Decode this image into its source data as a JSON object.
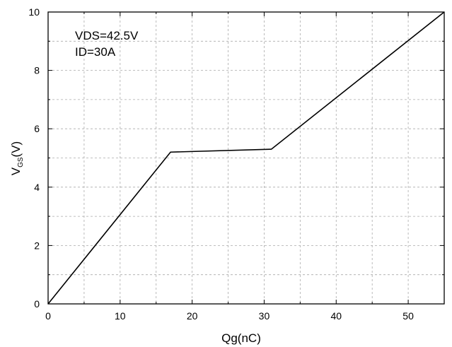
{
  "chart_data": {
    "type": "line",
    "title": "",
    "xlabel": "Qg(nC)",
    "ylabel": {
      "main": "V",
      "sub": "GS",
      "suffix": "(V)"
    },
    "xlim": [
      0,
      55
    ],
    "ylim": [
      0,
      10
    ],
    "xticks": [
      0,
      10,
      20,
      30,
      40,
      50
    ],
    "yticks": [
      0,
      2,
      4,
      6,
      8,
      10
    ],
    "grid": true,
    "annotations": [
      "VDS=42.5V",
      "ID=30A"
    ],
    "series": [
      {
        "color": "#000000",
        "x": [
          0,
          17,
          31,
          55
        ],
        "y": [
          0,
          5.2,
          5.3,
          10
        ]
      }
    ]
  }
}
